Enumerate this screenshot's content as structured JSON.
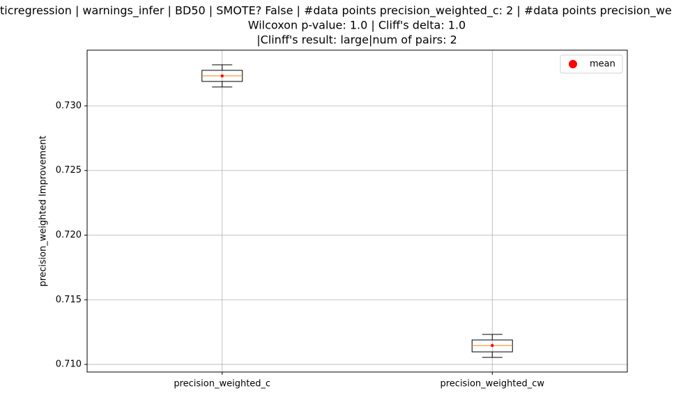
{
  "chart_data": {
    "type": "box",
    "title_lines": [
      "ticregression | warnings_infer | BD50 | SMOTE? False | #data points precision_weighted_c: 2 | #data points precision_we",
      "Wilcoxon p-value: 1.0 | Cliff's delta: 1.0",
      "|Clinff's result: large|num of pairs: 2"
    ],
    "ylabel": "precision_weighted Improvement",
    "categories": [
      "precision_weighted_c",
      "precision_weighted_cw"
    ],
    "boxes": [
      {
        "whislo": 0.73146,
        "q1": 0.73189,
        "med": 0.73232,
        "q3": 0.73275,
        "whishi": 0.73318,
        "mean": 0.73232
      },
      {
        "whislo": 0.71054,
        "q1": 0.71097,
        "med": 0.71146,
        "q3": 0.71189,
        "whishi": 0.71232,
        "mean": 0.71146
      }
    ],
    "ylim": [
      0.70941,
      0.73431
    ],
    "yticks": [
      {
        "value": 0.71,
        "label": "0.710"
      },
      0.715,
      {
        "value": 0.72,
        "label": "0.720"
      },
      0.725,
      {
        "value": 0.73,
        "label": "0.730"
      }
    ],
    "grid": true,
    "box_color": "#000000",
    "median_color": "#ff7f0e",
    "mean_color": "#ff0000",
    "legend": {
      "label": "mean",
      "loc": "upper right"
    }
  }
}
